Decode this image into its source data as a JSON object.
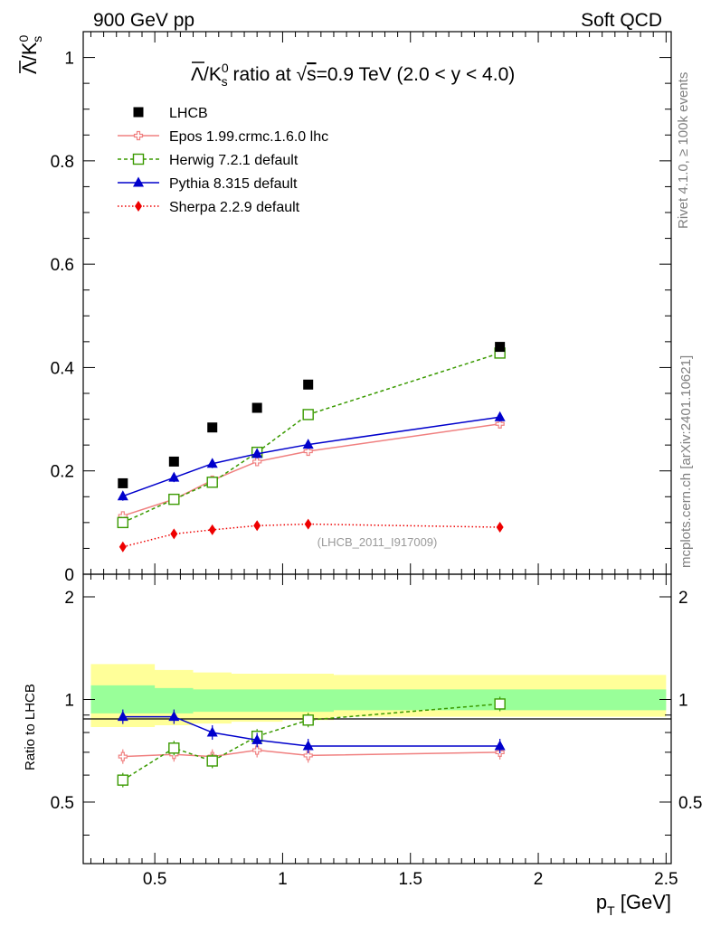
{
  "header": {
    "left_label": "900 GeV pp",
    "right_label": "Soft QCD"
  },
  "side_labels": {
    "rivet": "Rivet 4.1.0, ≥ 100k events",
    "mcplots": "mcplots.cern.ch [arXiv:2401.10621]"
  },
  "chart_data": {
    "type": "scatter",
    "title": "Λ̅/K⁰s ratio at √s=0.9 TeV (2.0 < y < 4.0)",
    "title_parts": {
      "lambda_bar": "Λ",
      "slash": "/K",
      "sup0": "0",
      "subs": "s",
      "mid": " ratio at ",
      "sqrt": "√",
      "s": "s",
      "rest": "=0.9 TeV (2.0 < y < 4.0)"
    },
    "ylabel_parts": {
      "lambda_bar": "Λ",
      "slash": "/K",
      "sup0": "0",
      "subs": "s"
    },
    "xlabel": "p_T [GeV]",
    "xlabel_parts": {
      "p": "p",
      "T": "T",
      "unit": " [GeV]"
    },
    "watermark": "(LHCB_2011_I917009)",
    "xlim": [
      0.22,
      2.52
    ],
    "ylim": [
      0,
      1.05
    ],
    "x_ticks": [
      0.5,
      1,
      1.5,
      2,
      2.5
    ],
    "x_tick_labels": [
      "0.5",
      "1",
      "1.5",
      "2",
      "2.5"
    ],
    "y_ticks": [
      0,
      0.2,
      0.4,
      0.6,
      0.8,
      1
    ],
    "y_tick_labels": [
      "0",
      "0.2",
      "0.4",
      "0.6",
      "0.8",
      "1"
    ],
    "x": [
      0.375,
      0.575,
      0.725,
      0.9,
      1.1,
      1.85
    ],
    "data_series": {
      "name": "LHCB",
      "values": [
        0.176,
        0.218,
        0.284,
        0.322,
        0.367,
        0.44
      ],
      "color": "#000000"
    },
    "series": [
      {
        "name": "Epos 1.99.crmc.1.6.0 lhc",
        "color": "#f08080",
        "marker": "plus-open",
        "dash": "solid",
        "values": [
          0.113,
          0.145,
          0.182,
          0.218,
          0.238,
          0.291
        ],
        "ratio": [
          0.68,
          0.69,
          0.68,
          0.71,
          0.685,
          0.7
        ]
      },
      {
        "name": "Herwig 7.2.1 default",
        "color": "#3a9a00",
        "marker": "square-open",
        "dash": "4,3",
        "values": [
          0.1,
          0.145,
          0.178,
          0.236,
          0.309,
          0.428
        ],
        "ratio": [
          0.58,
          0.72,
          0.66,
          0.78,
          0.87,
          0.97
        ]
      },
      {
        "name": "Pythia 8.315 default",
        "color": "#0000cc",
        "marker": "triangle",
        "dash": "solid",
        "values": [
          0.151,
          0.187,
          0.214,
          0.233,
          0.251,
          0.304
        ],
        "ratio": [
          0.89,
          0.89,
          0.8,
          0.76,
          0.73,
          0.73
        ]
      },
      {
        "name": "Sherpa 2.2.9 default",
        "color": "#ee0000",
        "marker": "diamond",
        "dash": "1.5,2.5",
        "values": [
          0.053,
          0.078,
          0.086,
          0.094,
          0.097,
          0.091
        ],
        "ratio": []
      }
    ],
    "ratio_panel": {
      "ylabel": "Ratio to LHCB",
      "ylim": [
        0.33,
        2.33
      ],
      "y_ticks": [
        0.5,
        1,
        2
      ],
      "y_tick_labels": [
        "0.5",
        "1",
        "2"
      ],
      "band_edges": [
        0.25,
        0.5,
        0.65,
        0.8,
        1.0,
        1.2,
        2.5
      ],
      "inner_band": {
        "color": "#99ff99",
        "low": [
          0.91,
          0.91,
          0.92,
          0.92,
          0.92,
          0.93
        ],
        "high": [
          1.1,
          1.08,
          1.07,
          1.07,
          1.07,
          1.07
        ]
      },
      "outer_band": {
        "color": "#ffff99",
        "low": [
          0.83,
          0.84,
          0.85,
          0.86,
          0.87,
          0.89
        ],
        "high": [
          1.27,
          1.22,
          1.2,
          1.19,
          1.19,
          1.18
        ]
      }
    }
  }
}
